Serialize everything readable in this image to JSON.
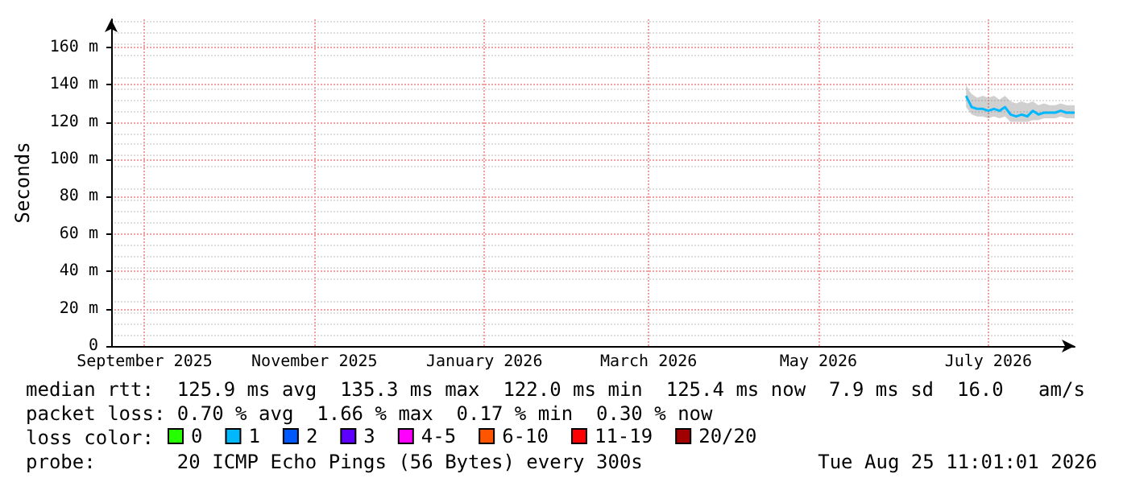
{
  "chart_data": {
    "type": "line",
    "ylabel": "Seconds",
    "legend_title": "loss color:",
    "legend": "bottom",
    "grid": true,
    "marker": "none",
    "line_style": "solid",
    "xlim": [
      "2025-08-20",
      "2026-08-01"
    ],
    "xticks": [
      {
        "value": "2025-09-01",
        "label": "September 2025"
      },
      {
        "value": "2025-11-01",
        "label": "November 2025"
      },
      {
        "value": "2026-01-01",
        "label": "January 2026"
      },
      {
        "value": "2026-03-01",
        "label": "March 2026"
      },
      {
        "value": "2026-05-01",
        "label": "May 2026"
      },
      {
        "value": "2026-07-01",
        "label": "July 2026"
      }
    ],
    "ylim": [
      0,
      175
    ],
    "yticks": [
      0,
      {
        "value": 20,
        "label": "20 m"
      },
      {
        "value": 40,
        "label": "40 m"
      },
      {
        "value": 60,
        "label": "60 m"
      },
      {
        "value": 80,
        "label": "80 m"
      },
      {
        "value": 100,
        "label": "100 m"
      },
      {
        "value": 120,
        "label": "120 m"
      },
      {
        "value": 140,
        "label": "140 m"
      },
      {
        "value": 160,
        "label": "160 m"
      }
    ],
    "x": [
      "2026-06-23",
      "2026-06-24",
      "2026-06-25",
      "2026-06-27",
      "2026-06-29",
      "2026-07-01",
      "2026-07-03",
      "2026-07-05",
      "2026-07-07",
      "2026-07-09",
      "2026-07-11",
      "2026-07-13",
      "2026-07-15",
      "2026-07-17",
      "2026-07-19",
      "2026-07-21",
      "2026-07-23",
      "2026-07-25",
      "2026-07-27",
      "2026-07-29",
      "2026-07-31",
      "2026-08-01"
    ],
    "series": [
      {
        "name": "0",
        "color": "#26ff00",
        "values": [
          null,
          null,
          null,
          null,
          null,
          null,
          null,
          null,
          null,
          null,
          null,
          null,
          null,
          null,
          null,
          null,
          null,
          null,
          null,
          null,
          null,
          null
        ]
      },
      {
        "name": "1",
        "color": "#00b8ff",
        "values": [
          134,
          131,
          128,
          127,
          127,
          126,
          127,
          126,
          128,
          124,
          123,
          124,
          123,
          126,
          124,
          125,
          125,
          125,
          126,
          125,
          125,
          125
        ],
        "lower": [
          128,
          126,
          124,
          123,
          123,
          122,
          123,
          122,
          123,
          120,
          120,
          120,
          120,
          121,
          121,
          122,
          122,
          122,
          123,
          122,
          122,
          122
        ],
        "upper": [
          140,
          137,
          135,
          133,
          134,
          133,
          134,
          132,
          134,
          131,
          130,
          131,
          130,
          131,
          129,
          130,
          129,
          129,
          130,
          129,
          129,
          129
        ]
      },
      {
        "name": "2",
        "color": "#0059ff",
        "values": [
          null,
          null,
          null,
          null,
          null,
          null,
          null,
          null,
          null,
          null,
          null,
          null,
          null,
          null,
          null,
          null,
          null,
          null,
          null,
          null,
          null,
          null
        ]
      },
      {
        "name": "3",
        "color": "#5e00ff",
        "values": [
          null,
          null,
          null,
          null,
          null,
          null,
          null,
          null,
          null,
          null,
          null,
          null,
          null,
          null,
          null,
          null,
          null,
          null,
          null,
          null,
          null,
          null
        ]
      },
      {
        "name": "4-5",
        "color": "#ff00ff",
        "values": [
          null,
          null,
          null,
          null,
          null,
          null,
          null,
          null,
          null,
          null,
          null,
          null,
          null,
          null,
          null,
          null,
          null,
          null,
          null,
          null,
          null,
          null
        ]
      },
      {
        "name": "6-10",
        "color": "#ff5500",
        "values": [
          null,
          null,
          null,
          null,
          null,
          null,
          null,
          null,
          null,
          null,
          null,
          null,
          null,
          null,
          null,
          null,
          null,
          null,
          null,
          null,
          null,
          null
        ]
      },
      {
        "name": "11-19",
        "color": "#ff0000",
        "values": [
          null,
          null,
          null,
          null,
          null,
          null,
          null,
          null,
          null,
          null,
          null,
          null,
          null,
          null,
          null,
          null,
          null,
          null,
          null,
          null,
          null,
          null
        ]
      },
      {
        "name": "20/20",
        "color": "#a10000",
        "values": [
          null,
          null,
          null,
          null,
          null,
          null,
          null,
          null,
          null,
          null,
          null,
          null,
          null,
          null,
          null,
          null,
          null,
          null,
          null,
          null,
          null,
          null
        ]
      }
    ],
    "annotations": [
      "median rtt:  125.9 ms avg  135.3 ms max  122.0 ms min  125.4 ms now  7.9 ms sd  16.0   am/s",
      "packet loss: 0.70 % avg  1.66 % max  0.17 % min  0.30 % now",
      "probe:       20 ICMP Echo Pings (56 Bytes) every 300s",
      "Tue Aug 25 11:01:01 2026"
    ]
  }
}
